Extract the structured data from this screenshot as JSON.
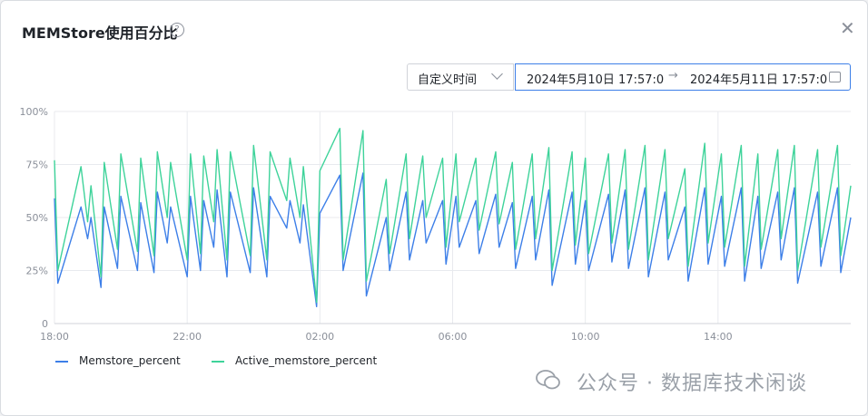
{
  "dialog": {
    "title": "MEMStore使用百分比",
    "help_icon": "question-circle-icon",
    "close_icon": "close-icon"
  },
  "range": {
    "mode": "自定义时间",
    "start": "2024年5月10日 17:57:0",
    "arrow": "→",
    "end": "2024年5月11日 17:57:0"
  },
  "watermark": {
    "text": "公众号 · 数据库技术闲谈"
  },
  "colors": {
    "memstore": "#3d7fe8",
    "active": "#3ed39a",
    "grid": "#e8eaee",
    "axis_text": "#8a8f99"
  },
  "chart_data": {
    "type": "line",
    "title": "",
    "xlabel": "",
    "ylabel": "",
    "y_ticks": [
      "0",
      "25%",
      "50%",
      "75%",
      "100%"
    ],
    "ylim": [
      0,
      100
    ],
    "x_ticks": [
      "18:00",
      "22:00",
      "02:00",
      "06:00",
      "10:00",
      "14:00"
    ],
    "x_tick_hours": [
      0,
      4,
      8,
      12,
      16,
      20
    ],
    "x_range_hours": [
      0,
      24
    ],
    "grid": true,
    "legend_position": "bottom-left",
    "series": [
      {
        "name": "Memstore_percent",
        "color": "#3d7fe8",
        "x": [
          0.0,
          0.1,
          0.8,
          1.0,
          1.1,
          1.4,
          1.5,
          1.9,
          2.0,
          2.5,
          2.6,
          3.0,
          3.1,
          3.4,
          3.5,
          4.0,
          4.1,
          4.4,
          4.5,
          4.8,
          4.9,
          5.2,
          5.3,
          5.9,
          6.0,
          6.4,
          6.5,
          7.0,
          7.1,
          7.4,
          7.5,
          7.9,
          8.0,
          8.6,
          8.7,
          9.3,
          9.4,
          10.0,
          10.1,
          10.6,
          10.7,
          11.1,
          11.2,
          11.7,
          11.8,
          12.1,
          12.2,
          12.7,
          12.8,
          13.3,
          13.4,
          13.8,
          13.9,
          14.4,
          14.5,
          14.9,
          15.0,
          15.6,
          15.7,
          16.0,
          16.1,
          16.7,
          16.8,
          17.2,
          17.3,
          17.8,
          17.9,
          18.4,
          18.5,
          19.0,
          19.1,
          19.6,
          19.7,
          20.1,
          20.2,
          20.7,
          20.8,
          21.2,
          21.3,
          21.8,
          21.9,
          22.3,
          22.4,
          23.0,
          23.1,
          23.6,
          23.7,
          24.0
        ],
        "values": [
          59,
          19,
          55,
          40,
          50,
          17,
          55,
          26,
          60,
          25,
          57,
          24,
          62,
          38,
          55,
          22,
          60,
          25,
          58,
          36,
          63,
          22,
          62,
          24,
          64,
          22,
          60,
          45,
          58,
          38,
          56,
          8,
          52,
          70,
          25,
          71,
          13,
          50,
          25,
          62,
          30,
          58,
          38,
          58,
          28,
          60,
          36,
          58,
          33,
          61,
          36,
          57,
          26,
          60,
          30,
          63,
          18,
          62,
          28,
          58,
          25,
          61,
          29,
          63,
          26,
          64,
          22,
          62,
          30,
          55,
          20,
          64,
          28,
          60,
          27,
          64,
          20,
          60,
          26,
          62,
          30,
          64,
          19,
          62,
          27,
          64,
          24,
          50
        ]
      },
      {
        "name": "Active_memstore_percent",
        "color": "#3ed39a",
        "x": [
          0.0,
          0.1,
          0.8,
          1.0,
          1.1,
          1.4,
          1.5,
          1.9,
          2.0,
          2.5,
          2.6,
          3.0,
          3.1,
          3.4,
          3.5,
          4.0,
          4.1,
          4.4,
          4.5,
          4.8,
          4.9,
          5.2,
          5.3,
          5.9,
          6.0,
          6.4,
          6.5,
          7.0,
          7.1,
          7.4,
          7.5,
          7.9,
          8.0,
          8.6,
          8.7,
          9.3,
          9.4,
          10.0,
          10.1,
          10.6,
          10.7,
          11.1,
          11.2,
          11.7,
          11.8,
          12.1,
          12.2,
          12.7,
          12.8,
          13.3,
          13.4,
          13.8,
          13.9,
          14.4,
          14.5,
          14.9,
          15.0,
          15.6,
          15.7,
          16.0,
          16.1,
          16.7,
          16.8,
          17.2,
          17.3,
          17.8,
          17.9,
          18.4,
          18.5,
          19.0,
          19.1,
          19.6,
          19.7,
          20.1,
          20.2,
          20.7,
          20.8,
          21.2,
          21.3,
          21.8,
          21.9,
          22.3,
          22.4,
          23.0,
          23.1,
          23.6,
          23.7,
          24.0
        ],
        "values": [
          77,
          25,
          74,
          48,
          65,
          22,
          76,
          35,
          80,
          34,
          78,
          32,
          81,
          50,
          76,
          30,
          80,
          33,
          79,
          48,
          82,
          30,
          81,
          32,
          84,
          30,
          81,
          58,
          78,
          50,
          74,
          10,
          72,
          92,
          30,
          91,
          20,
          68,
          33,
          80,
          40,
          79,
          50,
          78,
          36,
          80,
          48,
          78,
          44,
          81,
          47,
          76,
          35,
          80,
          40,
          83,
          25,
          81,
          37,
          78,
          33,
          80,
          38,
          82,
          35,
          84,
          30,
          82,
          40,
          73,
          27,
          85,
          38,
          80,
          36,
          84,
          27,
          80,
          35,
          82,
          40,
          84,
          25,
          82,
          36,
          84,
          32,
          65
        ]
      }
    ]
  }
}
